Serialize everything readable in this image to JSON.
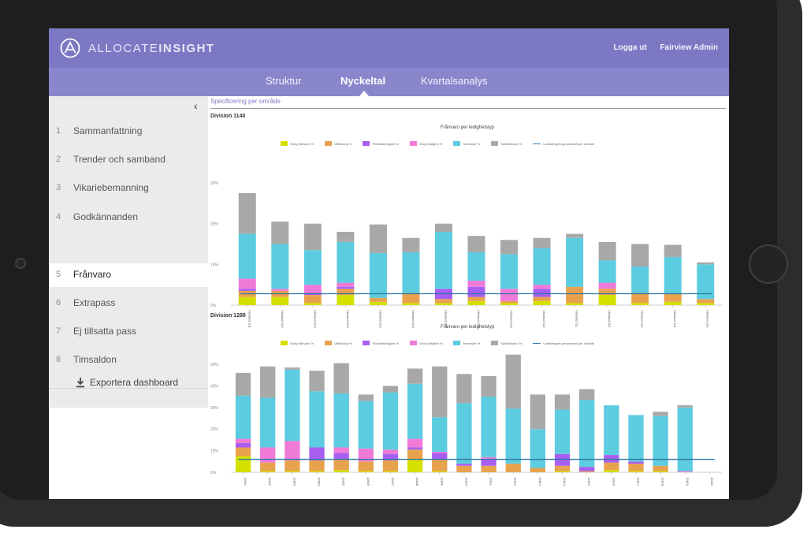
{
  "app": {
    "logo_text_light": "ALLOCATE",
    "logo_text_bold": "INSIGHT",
    "logout": "Logga ut",
    "user": "Fairview Admin"
  },
  "nav": {
    "tabs": [
      {
        "label": "Struktur"
      },
      {
        "label": "Nyckeltal",
        "active": true
      },
      {
        "label": "Kvartalsanalys"
      }
    ]
  },
  "sidebar": {
    "items": [
      {
        "num": "1",
        "label": "Sammanfattning"
      },
      {
        "num": "2",
        "label": "Trender och samband"
      },
      {
        "num": "3",
        "label": "Vikariebemanning"
      },
      {
        "num": "4",
        "label": "Godkännanden"
      },
      {
        "num": "5",
        "label": "Frånvaro",
        "active": true
      },
      {
        "num": "6",
        "label": "Extrapass"
      },
      {
        "num": "7",
        "label": "Ej tillsatta pass"
      },
      {
        "num": "8",
        "label": "Timsaldon"
      }
    ],
    "export_label": "Exportera dashboard"
  },
  "content": {
    "section_title": "Specificering per område"
  },
  "colors": {
    "ovrig": "#d4e000",
    "utbildning": "#e8a24e",
    "foraldraledighet": "#a85ef0",
    "ovrig_ledighet": "#f07ad8",
    "semester": "#5ccce0",
    "sjukfranvaro": "#a8a8a8",
    "avg_line": "#2e77a8"
  },
  "chart_data": [
    {
      "type": "bar",
      "division": "Division 1140",
      "title": "Frånvaro per ledighetstyp",
      "legend": [
        "Övrig frånvaro %",
        "Utbildning %",
        "Föräldraledighet %",
        "Övrig ledighet %",
        "Semester %",
        "Sjukfrånvaro %",
        "Landstingets genomsnitt per område"
      ],
      "yticks": [
        "0%",
        "10%",
        "20%",
        "30%"
      ],
      "ylim": [
        0,
        30
      ],
      "categories": [
        "Vårdavd 101",
        "Vårdavd 102",
        "Vårdavd 103",
        "Vårdavd 104",
        "Vårdavd 105",
        "Vårdavd 106",
        "Vårdavd 107",
        "Vårdavd 108",
        "Vårdavd 109",
        "Vårdavd 110",
        "Vårdavd 111",
        "Vårdavd 112",
        "Vårdavd 113",
        "Vårdavd 114",
        "Vårdavd 115"
      ],
      "average": 2.8,
      "series": [
        {
          "name": "Övrig frånvaro %",
          "values": [
            2.0,
            2.0,
            0.5,
            2.5,
            0.8,
            0.5,
            0.5,
            1.0,
            0.5,
            1.0,
            0.5,
            2.5,
            0.5,
            0.8,
            0.5
          ]
        },
        {
          "name": "Utbildning %",
          "values": [
            1.5,
            1.5,
            2.0,
            1.5,
            1.0,
            2.5,
            1.0,
            1.0,
            0.5,
            1.0,
            4.0,
            1.5,
            2.5,
            2.0,
            1.0
          ]
        },
        {
          "name": "Föräldraledighet %",
          "values": [
            0.5,
            0.0,
            0.5,
            0.5,
            0.0,
            0.0,
            2.5,
            2.5,
            0.0,
            2.0,
            0.0,
            0.0,
            0.0,
            0.0,
            0.0
          ]
        },
        {
          "name": "Övrig ledighet %",
          "values": [
            2.5,
            0.5,
            2.0,
            1.0,
            0.0,
            0.0,
            0.0,
            1.5,
            3.0,
            1.0,
            0.0,
            1.5,
            0.0,
            0.0,
            0.0
          ]
        },
        {
          "name": "Semester %",
          "values": [
            11.0,
            11.0,
            8.5,
            10.0,
            11.0,
            10.0,
            14.0,
            7.0,
            8.5,
            9.0,
            12.0,
            5.5,
            6.5,
            9.0,
            8.5
          ]
        },
        {
          "name": "Sjukfrånvaro %",
          "values": [
            10.0,
            5.5,
            6.5,
            2.5,
            7.0,
            3.5,
            2.0,
            4.0,
            3.5,
            2.5,
            1.0,
            4.5,
            5.5,
            3.0,
            0.5
          ]
        }
      ]
    },
    {
      "type": "bar",
      "division": "Division 1288",
      "title": "Frånvaro per ledighetstyp",
      "legend": [
        "Övrig frånvaro %",
        "Utbildning %",
        "Föräldraledighet %",
        "Övrig ledighet %",
        "Semester %",
        "Sjukfrånvaro %",
        "Landstingets genomsnitt per område"
      ],
      "yticks": [
        "0%",
        "10%",
        "20%",
        "30%",
        "40%",
        "50%"
      ],
      "ylim": [
        0,
        50
      ],
      "categories": [
        "12801",
        "12802",
        "12803",
        "12804",
        "12805",
        "12806",
        "12807",
        "12808",
        "12809",
        "12810",
        "12811",
        "12812",
        "12813",
        "12814",
        "12815",
        "12816",
        "12817",
        "12818",
        "12819",
        "12820"
      ],
      "average": 6.0,
      "series": [
        {
          "name": "Övrig frånvaro %",
          "values": [
            7.5,
            0.5,
            0.5,
            0.5,
            1.0,
            0.5,
            0.5,
            6.0,
            0.5,
            0.0,
            0.0,
            0.0,
            0.0,
            0.5,
            0.0,
            1.0,
            0.5,
            0.5,
            0.0,
            0.0
          ]
        },
        {
          "name": "Utbildning %",
          "values": [
            4.0,
            4.0,
            5.0,
            5.0,
            5.0,
            4.5,
            5.0,
            4.5,
            5.5,
            3.0,
            3.0,
            4.0,
            2.0,
            2.5,
            0.5,
            3.5,
            3.5,
            2.5,
            0.0,
            0.0
          ]
        },
        {
          "name": "Föräldraledighet %",
          "values": [
            2.0,
            0.0,
            0.0,
            6.0,
            3.0,
            0.0,
            3.0,
            1.0,
            3.0,
            1.0,
            3.0,
            0.0,
            0.0,
            5.5,
            2.0,
            3.5,
            1.0,
            0.0,
            0.0,
            0.0
          ]
        },
        {
          "name": "Övrig ledighet %",
          "values": [
            2.0,
            7.0,
            9.0,
            0.0,
            2.5,
            6.0,
            2.0,
            4.0,
            0.5,
            0.0,
            1.0,
            0.0,
            0.0,
            0.0,
            0.0,
            0.0,
            0.0,
            0.0,
            0.5,
            0.0
          ]
        },
        {
          "name": "Semester %",
          "values": [
            20.0,
            23.0,
            33.0,
            26.0,
            25.0,
            22.0,
            26.5,
            25.5,
            16.0,
            28.0,
            28.0,
            25.5,
            18.0,
            20.5,
            31.0,
            23.0,
            21.5,
            23.0,
            29.5,
            0.0
          ]
        },
        {
          "name": "Sjukfrånvaro %",
          "values": [
            10.5,
            14.5,
            1.0,
            9.5,
            14.0,
            3.0,
            3.0,
            7.0,
            23.5,
            13.5,
            9.5,
            25.0,
            16.0,
            7.0,
            5.0,
            0.0,
            0.0,
            2.0,
            1.0,
            0.0
          ]
        }
      ]
    }
  ]
}
